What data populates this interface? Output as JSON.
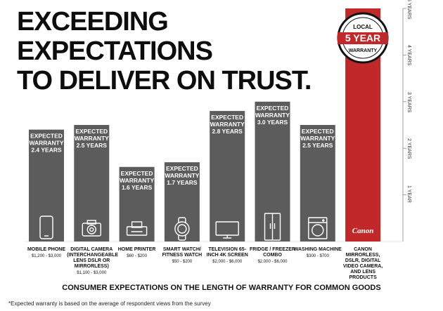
{
  "title_line1": "EXCEEDING EXPECTATIONS",
  "title_line2": "TO DELIVER ON TRUST.",
  "badge": {
    "top": "LOCAL",
    "middle": "5 YEAR",
    "bottom": "WARRANTY"
  },
  "brand_logo_text": "Canon",
  "subtitle": "CONSUMER EXPECTATIONS ON THE LENGTH OF WARRANTY FOR COMMON GOODS",
  "footnote": "*Expected warranty is based on the average of respondent views from the survey",
  "colors": {
    "bar": "#5c5c5c",
    "highlight": "#c0282a",
    "axis": "#888888"
  },
  "chart_data": {
    "type": "bar",
    "title": "",
    "ylabel": "",
    "ylim": [
      0,
      5
    ],
    "y_ticks": [
      "1 YEAR",
      "2 YEARS",
      "3 YEARS",
      "4 YEARS",
      "5 YEARS"
    ],
    "categories": [
      {
        "name": "MOBILE PHONE",
        "price": "$1,200 - $3,000",
        "label": [
          "EXPECTED",
          "WARRANTY",
          "2.4 YEARS"
        ],
        "value": 2.4,
        "icon": "phone-icon"
      },
      {
        "name": "DIGITAL CAMERA (INTERCHANGEABLE LENS DSLR OR MIRRORLESS)",
        "price": "$1,100 - $3,000",
        "label": [
          "EXPECTED",
          "WARRANTY",
          "2.5 YEARS"
        ],
        "value": 2.5,
        "icon": "camera-icon"
      },
      {
        "name": "HOME PRINTER",
        "price": "$60 - $200",
        "label": [
          "EXPECTED",
          "WARRANTY",
          "1.6 YEARS"
        ],
        "value": 1.6,
        "icon": "printer-icon"
      },
      {
        "name": "SMART WATCH/ FITNESS WATCH",
        "price": "$50 - $200",
        "label": [
          "EXPECTED",
          "WARRANTY",
          "1.7 YEARS"
        ],
        "value": 1.7,
        "icon": "watch-icon"
      },
      {
        "name": "TELEVISION 65-INCH 4K SCREEN",
        "price": "$2,000 - $6,000",
        "label": [
          "EXPECTED",
          "WARRANTY",
          "2.8 YEARS"
        ],
        "value": 2.8,
        "icon": "tv-icon"
      },
      {
        "name": "FRIDGE / FREEZER COMBO",
        "price": "$2,000 - $6,000",
        "label": [
          "EXPECTED",
          "WARRANTY",
          "3.0 YEARS"
        ],
        "value": 3.0,
        "icon": "fridge-icon"
      },
      {
        "name": "WASHING MACHINE",
        "price": "$300 - $700",
        "label": [
          "EXPECTED",
          "WARRANTY",
          "2.5 YEARS"
        ],
        "value": 2.5,
        "icon": "washer-icon"
      },
      {
        "name": "CANON MIRRORLESS, DSLR, DIGITAL VIDEO CAMERA, AND LENS PRODUCTS",
        "price": "",
        "label": [],
        "value": 5.0,
        "icon": "canon-logo",
        "highlight": true
      }
    ]
  }
}
